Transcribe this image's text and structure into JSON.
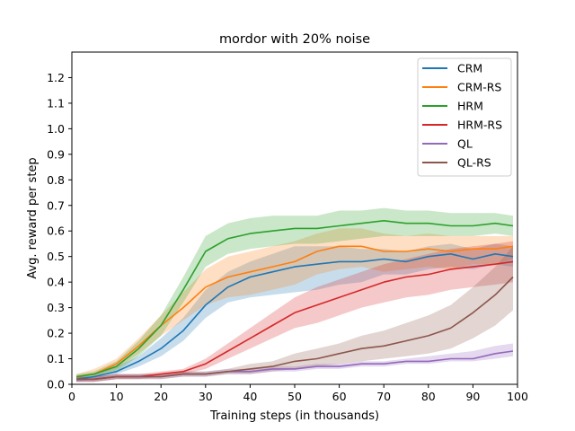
{
  "chart_data": {
    "type": "line",
    "title": "mordor with 20% noise",
    "xlabel": "Training steps (in thousands)",
    "ylabel": "Avg. reward per step",
    "xlim": [
      0,
      100
    ],
    "ylim": [
      0,
      1.3
    ],
    "xticks": [
      "0",
      "10",
      "20",
      "30",
      "40",
      "50",
      "60",
      "70",
      "80",
      "90",
      "100"
    ],
    "yticks": [
      "0.0",
      "0.1",
      "0.2",
      "0.3",
      "0.4",
      "0.5",
      "0.6",
      "0.7",
      "0.8",
      "0.9",
      "1.0",
      "1.1",
      "1.2"
    ],
    "grid": false,
    "legend_position": "top-right",
    "series": [
      {
        "name": "CRM",
        "color": "#1f77b4",
        "x": [
          1,
          5,
          10,
          15,
          20,
          25,
          30,
          35,
          40,
          45,
          50,
          55,
          60,
          65,
          70,
          75,
          80,
          85,
          90,
          95,
          99
        ],
        "y": [
          0.02,
          0.03,
          0.05,
          0.09,
          0.14,
          0.21,
          0.31,
          0.38,
          0.42,
          0.44,
          0.46,
          0.47,
          0.48,
          0.48,
          0.49,
          0.48,
          0.5,
          0.51,
          0.49,
          0.51,
          0.5
        ],
        "lo": [
          0.01,
          0.02,
          0.04,
          0.07,
          0.11,
          0.17,
          0.26,
          0.32,
          0.34,
          0.35,
          0.36,
          0.37,
          0.39,
          0.4,
          0.43,
          0.43,
          0.45,
          0.46,
          0.45,
          0.47,
          0.46
        ],
        "hi": [
          0.03,
          0.04,
          0.07,
          0.11,
          0.18,
          0.26,
          0.37,
          0.44,
          0.48,
          0.51,
          0.54,
          0.54,
          0.54,
          0.53,
          0.53,
          0.52,
          0.54,
          0.55,
          0.53,
          0.55,
          0.54
        ]
      },
      {
        "name": "CRM-RS",
        "color": "#ff7f0e",
        "x": [
          1,
          5,
          10,
          15,
          20,
          25,
          30,
          35,
          40,
          45,
          50,
          55,
          60,
          65,
          70,
          75,
          80,
          85,
          90,
          95,
          99
        ],
        "y": [
          0.03,
          0.04,
          0.08,
          0.15,
          0.23,
          0.3,
          0.38,
          0.42,
          0.44,
          0.46,
          0.48,
          0.52,
          0.54,
          0.54,
          0.52,
          0.52,
          0.53,
          0.52,
          0.53,
          0.53,
          0.54
        ],
        "lo": [
          0.02,
          0.03,
          0.06,
          0.12,
          0.19,
          0.25,
          0.31,
          0.34,
          0.35,
          0.37,
          0.39,
          0.43,
          0.45,
          0.46,
          0.44,
          0.45,
          0.46,
          0.45,
          0.47,
          0.47,
          0.49
        ],
        "hi": [
          0.04,
          0.06,
          0.1,
          0.18,
          0.27,
          0.36,
          0.45,
          0.5,
          0.52,
          0.54,
          0.56,
          0.59,
          0.61,
          0.61,
          0.59,
          0.58,
          0.59,
          0.58,
          0.58,
          0.58,
          0.58
        ]
      },
      {
        "name": "HRM",
        "color": "#2ca02c",
        "x": [
          1,
          5,
          10,
          15,
          20,
          25,
          30,
          35,
          40,
          45,
          50,
          55,
          60,
          65,
          70,
          75,
          80,
          85,
          90,
          95,
          99
        ],
        "y": [
          0.03,
          0.04,
          0.07,
          0.14,
          0.23,
          0.37,
          0.52,
          0.57,
          0.59,
          0.6,
          0.61,
          0.61,
          0.62,
          0.63,
          0.64,
          0.63,
          0.63,
          0.62,
          0.62,
          0.63,
          0.62
        ],
        "lo": [
          0.02,
          0.03,
          0.05,
          0.11,
          0.19,
          0.32,
          0.46,
          0.51,
          0.53,
          0.54,
          0.55,
          0.55,
          0.56,
          0.57,
          0.58,
          0.58,
          0.58,
          0.58,
          0.58,
          0.59,
          0.58
        ],
        "hi": [
          0.04,
          0.05,
          0.09,
          0.17,
          0.27,
          0.42,
          0.58,
          0.63,
          0.65,
          0.66,
          0.66,
          0.66,
          0.68,
          0.68,
          0.69,
          0.68,
          0.68,
          0.67,
          0.67,
          0.67,
          0.66
        ]
      },
      {
        "name": "HRM-RS",
        "color": "#d62728",
        "x": [
          1,
          5,
          10,
          15,
          20,
          25,
          30,
          35,
          40,
          45,
          50,
          55,
          60,
          65,
          70,
          75,
          80,
          85,
          90,
          95,
          99
        ],
        "y": [
          0.02,
          0.02,
          0.03,
          0.03,
          0.04,
          0.05,
          0.08,
          0.13,
          0.18,
          0.23,
          0.28,
          0.31,
          0.34,
          0.37,
          0.4,
          0.42,
          0.43,
          0.45,
          0.46,
          0.47,
          0.48
        ],
        "lo": [
          0.01,
          0.01,
          0.02,
          0.02,
          0.03,
          0.04,
          0.06,
          0.1,
          0.14,
          0.18,
          0.22,
          0.24,
          0.27,
          0.3,
          0.32,
          0.34,
          0.35,
          0.37,
          0.38,
          0.39,
          0.4
        ],
        "hi": [
          0.03,
          0.03,
          0.04,
          0.04,
          0.05,
          0.06,
          0.1,
          0.16,
          0.22,
          0.28,
          0.34,
          0.38,
          0.41,
          0.44,
          0.47,
          0.49,
          0.51,
          0.53,
          0.54,
          0.55,
          0.56
        ]
      },
      {
        "name": "QL",
        "color": "#9467bd",
        "x": [
          1,
          5,
          10,
          15,
          20,
          25,
          30,
          35,
          40,
          45,
          50,
          55,
          60,
          65,
          70,
          75,
          80,
          85,
          90,
          95,
          99
        ],
        "y": [
          0.02,
          0.02,
          0.03,
          0.03,
          0.03,
          0.04,
          0.04,
          0.05,
          0.05,
          0.06,
          0.06,
          0.07,
          0.07,
          0.08,
          0.08,
          0.09,
          0.09,
          0.1,
          0.1,
          0.12,
          0.13
        ],
        "lo": [
          0.01,
          0.01,
          0.02,
          0.02,
          0.02,
          0.03,
          0.03,
          0.04,
          0.04,
          0.05,
          0.05,
          0.06,
          0.06,
          0.07,
          0.07,
          0.08,
          0.08,
          0.09,
          0.09,
          0.1,
          0.11
        ],
        "hi": [
          0.03,
          0.03,
          0.04,
          0.04,
          0.04,
          0.05,
          0.05,
          0.06,
          0.06,
          0.07,
          0.07,
          0.08,
          0.08,
          0.09,
          0.09,
          0.1,
          0.11,
          0.12,
          0.13,
          0.15,
          0.16
        ]
      },
      {
        "name": "QL-RS",
        "color": "#8c564b",
        "x": [
          1,
          5,
          10,
          15,
          20,
          25,
          30,
          35,
          40,
          45,
          50,
          55,
          60,
          65,
          70,
          75,
          80,
          85,
          90,
          95,
          99
        ],
        "y": [
          0.02,
          0.02,
          0.03,
          0.03,
          0.03,
          0.04,
          0.04,
          0.05,
          0.06,
          0.07,
          0.09,
          0.1,
          0.12,
          0.14,
          0.15,
          0.17,
          0.19,
          0.22,
          0.28,
          0.35,
          0.42
        ],
        "lo": [
          0.01,
          0.01,
          0.02,
          0.02,
          0.02,
          0.03,
          0.03,
          0.04,
          0.04,
          0.05,
          0.06,
          0.07,
          0.08,
          0.09,
          0.1,
          0.11,
          0.12,
          0.14,
          0.18,
          0.23,
          0.29
        ],
        "hi": [
          0.03,
          0.03,
          0.04,
          0.04,
          0.04,
          0.05,
          0.05,
          0.06,
          0.08,
          0.09,
          0.12,
          0.14,
          0.16,
          0.19,
          0.21,
          0.24,
          0.27,
          0.31,
          0.38,
          0.46,
          0.54
        ]
      }
    ]
  }
}
